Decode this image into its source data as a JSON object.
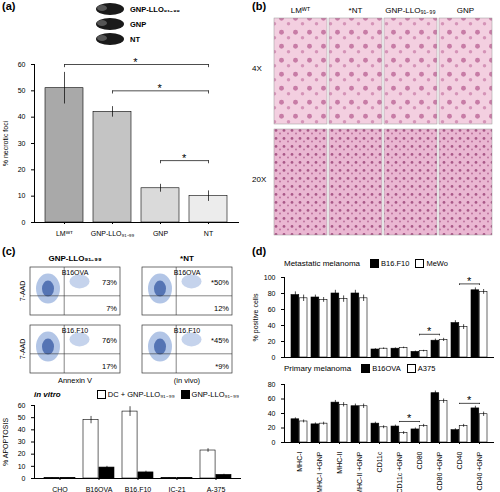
{
  "chart_data": [
    {
      "panel": "(a)",
      "type": "bar",
      "categories": [
        "LMᵂᵀ",
        "GNP-LLO₉₁₋₉₉",
        "GNP",
        "NT"
      ],
      "values": [
        51,
        42,
        13,
        10
      ],
      "errors": [
        6,
        2,
        1.5,
        2
      ],
      "colors": [
        "#a9a9a9",
        "#c4c4c4",
        "#dadada",
        "#ececec"
      ],
      "y_label": "% necrotic foci",
      "ylim": [
        0,
        60
      ],
      "yticks": [
        0,
        10,
        20,
        30,
        40,
        50,
        60
      ],
      "annotations": [
        {
          "text": "*",
          "from": "LMᵂᵀ",
          "to": "NT"
        },
        {
          "text": "*",
          "from": "GNP-LLO₉₁₋₉₉",
          "to": "NT"
        },
        {
          "text": "*",
          "from": "GNP",
          "to": "NT"
        }
      ],
      "inset_labels": [
        "GNP-LLO₉₁₋₉₉",
        "GNP",
        "NT"
      ]
    },
    {
      "panel": "(b)",
      "type": "image",
      "columns": [
        "LMᵂᵀ",
        "*NT",
        "GNP-LLO₉₁₋₉₉",
        "GNP"
      ],
      "rows": [
        "4X",
        "20X"
      ]
    },
    {
      "panel": "(c)",
      "type": "flow_cytometry",
      "columns": [
        "GNP-LLO₉₁₋₉₉",
        "*NT"
      ],
      "rows": [
        "B16OVA",
        "B16.F10"
      ],
      "cells": [
        [
          {
            "upper": "73%",
            "lower": "7%"
          },
          {
            "upper": "*50%",
            "lower": "12%"
          }
        ],
        [
          {
            "upper": "76%",
            "lower": "17%"
          },
          {
            "upper": "*45%",
            "lower": "*9%"
          }
        ]
      ],
      "x_label": "Annexin V",
      "x_note": "(in vivo)",
      "y_label": "7-AAD"
    },
    {
      "type": "bar",
      "annotation": "in vitro",
      "categories": [
        "CHO",
        "B16OVA",
        "B16.F10",
        "IC-21",
        "A-375"
      ],
      "series": [
        {
          "name": "DC + GNP-LLO₉₁₋₉₉",
          "color": "#ffffff",
          "values": [
            0.5,
            48,
            55,
            0.5,
            23
          ],
          "errors": [
            0.3,
            3,
            4,
            0.3,
            1.5
          ]
        },
        {
          "name": "GNP-LLO₉₁₋₉₉",
          "color": "#000000",
          "values": [
            0.3,
            9,
            5,
            0.3,
            3
          ],
          "errors": [
            0.2,
            1,
            1,
            0.2,
            0.5
          ]
        }
      ],
      "y_label": "% APOPTOSIS",
      "ylim": [
        0,
        60
      ],
      "yticks": [
        0,
        10,
        20,
        30,
        40,
        50,
        60
      ],
      "legend": "top-right"
    },
    {
      "panel": "(d)",
      "type": "bar",
      "title": "Metastatic melanoma",
      "categories": [
        "MHC-I",
        "MHC-I +GNP",
        "MHC-II",
        "MHC-II +GNP",
        "CD11c",
        "CD11c +GNP",
        "CD80",
        "CD80 +GNP",
        "CD40",
        "CD40 +GNP"
      ],
      "series": [
        {
          "name": "B16.F10",
          "color": "#000000",
          "values": [
            78,
            75,
            80,
            80,
            10,
            11,
            7,
            21,
            43,
            84
          ],
          "errors": [
            4,
            3,
            4,
            4,
            1,
            1,
            1,
            2,
            3,
            3
          ]
        },
        {
          "name": "MeWo",
          "color": "#ffffff",
          "values": [
            74,
            72,
            73,
            74,
            11,
            12,
            8,
            22,
            38,
            82
          ],
          "errors": [
            4,
            3,
            4,
            4,
            1,
            1,
            1,
            2,
            3,
            3
          ]
        }
      ],
      "y_label": "% positive cells",
      "ylim": [
        0,
        100
      ],
      "yticks": [
        0,
        20,
        40,
        60,
        80,
        100
      ],
      "tick_labels": "y",
      "legend": "top-left",
      "annotations": [
        {
          "text": "*",
          "from": "CD80",
          "to": "CD80 +GNP"
        },
        {
          "text": "*",
          "from": "CD40",
          "to": "CD40 +GNP"
        }
      ]
    },
    {
      "type": "bar",
      "title": "Primary melanoma",
      "categories": [
        "MHC-I",
        "MHC-I +GNP",
        "MHC-II",
        "MHC-II +GNP",
        "CD11c",
        "CD11c +GNP",
        "CD80",
        "CD80 +GNP",
        "CD40",
        "CD40 +GNP"
      ],
      "series": [
        {
          "name": "B16OVA",
          "color": "#000000",
          "values": [
            32,
            25,
            55,
            50,
            26,
            22,
            18,
            68,
            17,
            47
          ],
          "errors": [
            2,
            2,
            3,
            3,
            2,
            2,
            2,
            3,
            2,
            3
          ]
        },
        {
          "name": "A375",
          "color": "#ffffff",
          "values": [
            29,
            26,
            52,
            50,
            21,
            13,
            23,
            57,
            23,
            39
          ],
          "errors": [
            2,
            2,
            3,
            3,
            2,
            2,
            2,
            3,
            2,
            3
          ]
        }
      ],
      "ylim": [
        0,
        80
      ],
      "yticks": [
        0,
        20,
        40,
        60,
        80
      ],
      "legend": "top-left",
      "annotations": [
        {
          "text": "*",
          "from": "CD11c +GNP",
          "to": "CD80"
        },
        {
          "text": "*",
          "from": "CD40",
          "to": "CD40 +GNP"
        }
      ]
    }
  ]
}
